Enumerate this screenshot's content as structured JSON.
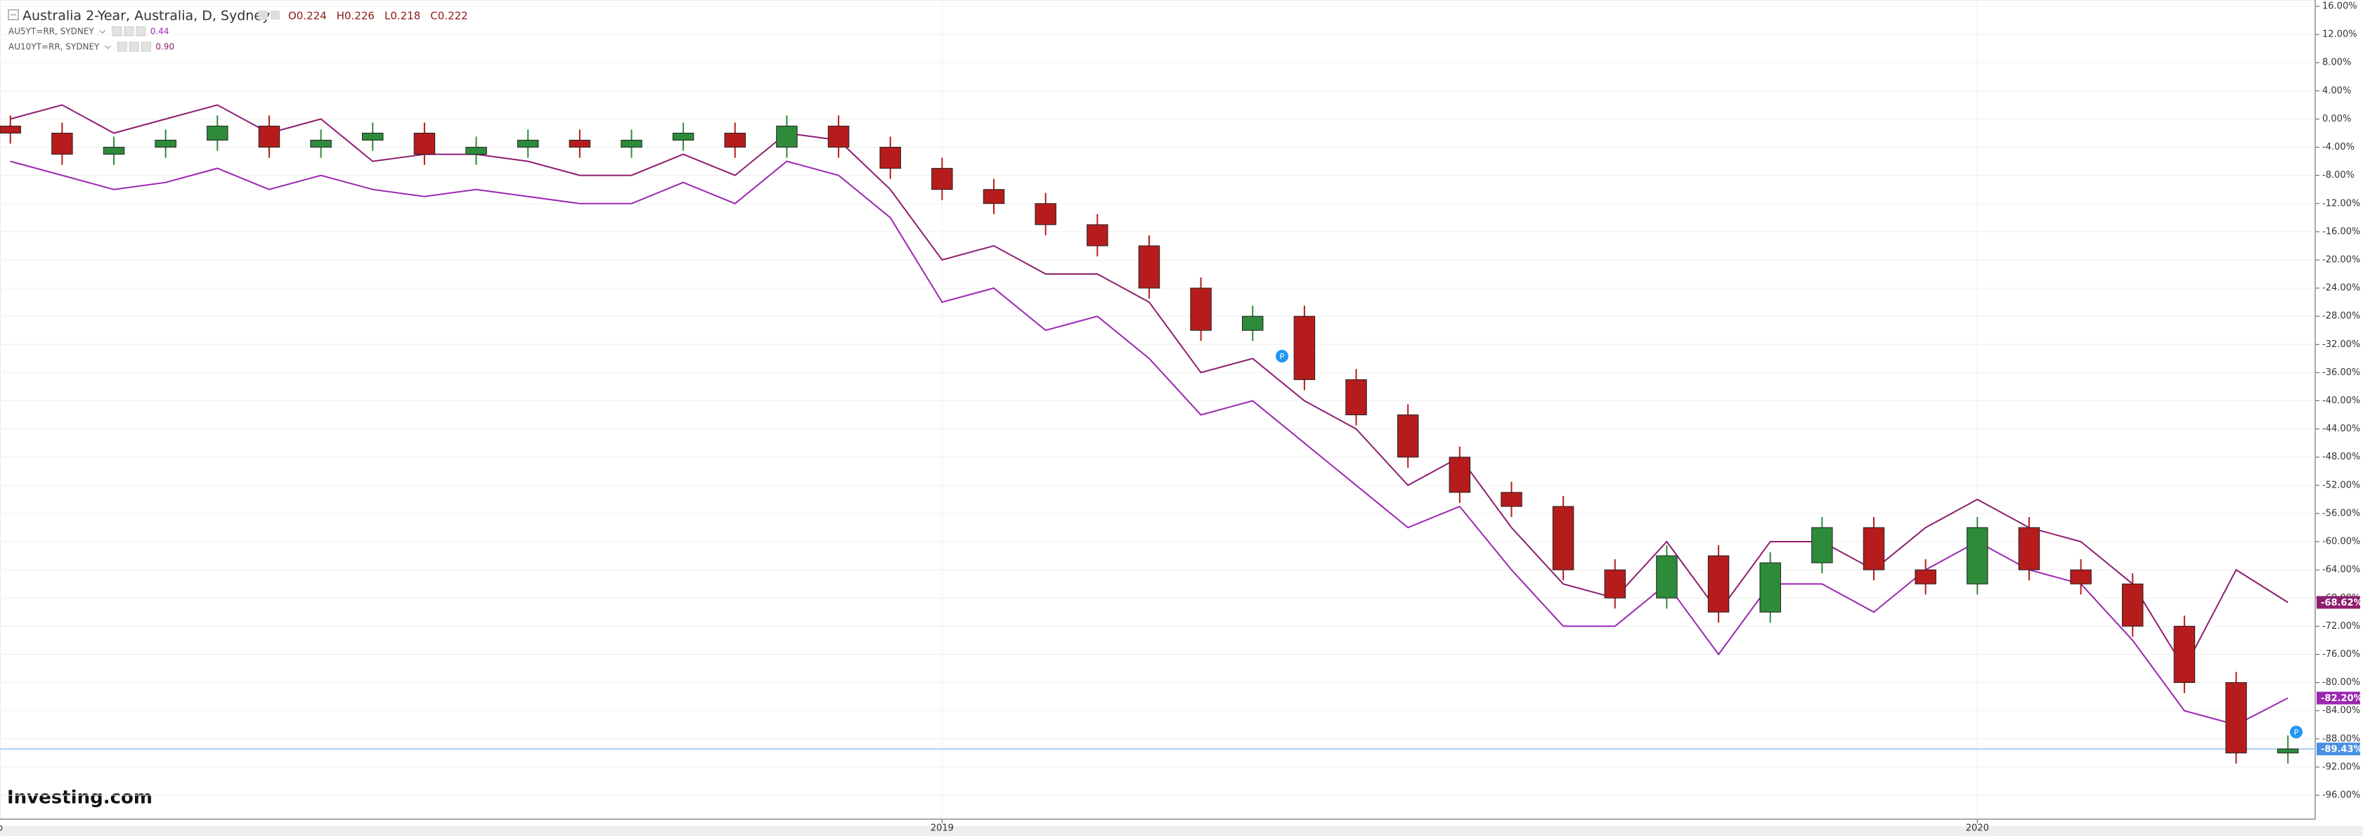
{
  "chart_data": {
    "type": "candlestick",
    "title": "Australia 2-Year, Australia, D, Sydney",
    "ohlc": [
      "O0.224",
      "H0.226",
      "L0.218",
      "C0.222"
    ],
    "logo": "Investing.com",
    "x": [
      2018.1,
      2018.15,
      2018.2,
      2018.25,
      2018.3,
      2018.35,
      2018.4,
      2018.45,
      2018.5,
      2018.55,
      2018.6,
      2018.65,
      2018.7,
      2018.75,
      2018.8,
      2018.85,
      2018.9,
      2018.95,
      2019.0,
      2019.05,
      2019.1,
      2019.15,
      2019.2,
      2019.25,
      2019.3,
      2019.35,
      2019.4,
      2019.45,
      2019.5,
      2019.55,
      2019.6,
      2019.65,
      2019.7,
      2019.75,
      2019.8,
      2019.85,
      2019.9,
      2019.95,
      2020.0,
      2020.05,
      2020.1,
      2020.15,
      2020.2,
      2020.25,
      2020.3
    ],
    "xlim": [
      2018.09,
      2020.325
    ],
    "xticks": [
      {
        "value": 2018.085,
        "label": "Feb"
      },
      {
        "value": 2019,
        "label": "2019"
      },
      {
        "value": 2020,
        "label": "2020"
      }
    ],
    "ylim": [
      -96,
      16
    ],
    "yticks": [
      {
        "value": 16,
        "label": "16.00%"
      },
      {
        "value": 12,
        "label": "12.00%"
      },
      {
        "value": 8,
        "label": "8.00%"
      },
      {
        "value": 4,
        "label": "4.00%"
      },
      {
        "value": 0,
        "label": "0.00%"
      },
      {
        "value": -4,
        "label": "-4.00%"
      },
      {
        "value": -8,
        "label": "-8.00%"
      },
      {
        "value": -12,
        "label": "-12.00%"
      },
      {
        "value": -16,
        "label": "-16.00%"
      },
      {
        "value": -20,
        "label": "-20.00%"
      },
      {
        "value": -24,
        "label": "-24.00%"
      },
      {
        "value": -28,
        "label": "-28.00%"
      },
      {
        "value": -32,
        "label": "-32.00%"
      },
      {
        "value": -36,
        "label": "-36.00%"
      },
      {
        "value": -40,
        "label": "-40.00%"
      },
      {
        "value": -44,
        "label": "-44.00%"
      },
      {
        "value": -48,
        "label": "-48.00%"
      },
      {
        "value": -52,
        "label": "-52.00%"
      },
      {
        "value": -56,
        "label": "-56.00%"
      },
      {
        "value": -60,
        "label": "-60.00%"
      },
      {
        "value": -64,
        "label": "-64.00%"
      },
      {
        "value": -68,
        "label": "-68.00%"
      },
      {
        "value": -72,
        "label": "-72.00%"
      },
      {
        "value": -76,
        "label": "-76.00%"
      },
      {
        "value": -80,
        "label": "-80.00%"
      },
      {
        "value": -84,
        "label": "-84.00%"
      },
      {
        "value": -88,
        "label": "-88.00%"
      },
      {
        "value": -92,
        "label": "-92.00%"
      },
      {
        "value": -96,
        "label": "-96.00%"
      }
    ],
    "grid": true,
    "series": [
      {
        "name": "Australia 2-Year",
        "color_up": "#2e8b3a",
        "color_down": "#b71c1c",
        "open": [
          -1,
          -2,
          -5,
          -4,
          -3,
          -1,
          -4,
          -3,
          -2,
          -5,
          -4,
          -3,
          -4,
          -3,
          -2,
          -4,
          -1,
          -4,
          -7,
          -10,
          -12,
          -15,
          -18,
          -24,
          -30,
          -28,
          -37,
          -42,
          -48,
          -53,
          -55,
          -64,
          -68,
          -62,
          -70,
          -63,
          -58,
          -64,
          -66,
          -58,
          -64,
          -66,
          -72,
          -80,
          -90
        ],
        "high": [
          0.5,
          -0.5,
          -2.5,
          -1.5,
          0.5,
          0.5,
          -1.5,
          -0.5,
          -0.5,
          -2.5,
          -1.5,
          -1.5,
          -1.5,
          -0.5,
          -0.5,
          0.5,
          0.5,
          -2.5,
          -5.5,
          -8.5,
          -10.5,
          -13.5,
          -16.5,
          -22.5,
          -26.5,
          -26.5,
          -35.5,
          -40.5,
          -46.5,
          -51.5,
          -53.5,
          -62.5,
          -60.5,
          -60.5,
          -61.5,
          -56.5,
          -56.5,
          -62.5,
          -56.5,
          -56.5,
          -62.5,
          -64.5,
          -70.5,
          -78.5,
          -87.5
        ],
        "low": [
          -3.5,
          -6.5,
          -6.5,
          -5.5,
          -4.5,
          -5.5,
          -5.5,
          -4.5,
          -6.5,
          -6.5,
          -5.5,
          -5.5,
          -5.5,
          -4.5,
          -5.5,
          -5.5,
          -5.5,
          -8.5,
          -11.5,
          -13.5,
          -16.5,
          -19.5,
          -25.5,
          -31.5,
          -31.5,
          -38.5,
          -43.5,
          -49.5,
          -54.5,
          -56.5,
          -65.5,
          -69.5,
          -69.5,
          -71.5,
          -71.5,
          -64.5,
          -65.5,
          -67.5,
          -67.5,
          -65.5,
          -67.5,
          -73.5,
          -81.5,
          -91.5,
          -91.5
        ],
        "close": [
          -2,
          -5,
          -4,
          -3,
          -1,
          -4,
          -3,
          -2,
          -5,
          -4,
          -3,
          -4,
          -3,
          -2,
          -4,
          -1,
          -4,
          -7,
          -10,
          -12,
          -15,
          -18,
          -24,
          -30,
          -28,
          -37,
          -42,
          -48,
          -53,
          -55,
          -64,
          -68,
          -62,
          -70,
          -63,
          -58,
          -64,
          -66,
          -58,
          -64,
          -66,
          -72,
          -80,
          -90,
          -89.43
        ]
      },
      {
        "name": "AU5YT=RR, SYDNEY",
        "legend_value": "0.44",
        "color": "#9c27b0",
        "values": [
          -6,
          -8,
          -10,
          -9,
          -7,
          -10,
          -8,
          -10,
          -11,
          -10,
          -11,
          -12,
          -12,
          -9,
          -12,
          -6,
          -8,
          -14,
          -26,
          -24,
          -30,
          -28,
          -34,
          -42,
          -40,
          -46,
          -52,
          -58,
          -55,
          -64,
          -72,
          -72,
          -66,
          -76,
          -66,
          -66,
          -70,
          -64,
          -60,
          -64,
          -66,
          -74,
          -84,
          -86,
          -82.2
        ]
      },
      {
        "name": "AU10YT=RR, SYDNEY",
        "legend_value": "0.90",
        "color": "#8e1e6e",
        "values": [
          0,
          2,
          -2,
          0,
          2,
          -2,
          0,
          -6,
          -5,
          -5,
          -6,
          -8,
          -8,
          -5,
          -8,
          -2,
          -3,
          -10,
          -20,
          -18,
          -22,
          -22,
          -26,
          -36,
          -34,
          -40,
          -44,
          -52,
          -48,
          -58,
          -66,
          -68,
          -60,
          -70,
          -60,
          -60,
          -64,
          -58,
          -54,
          -58,
          -60,
          -66,
          -78,
          -64,
          -68.62
        ]
      }
    ],
    "price_labels": [
      {
        "value": -68.62,
        "label": "-68.62%",
        "color": "#8e1e6e"
      },
      {
        "value": -82.2,
        "label": "-82.20%",
        "color": "#9c27b0"
      },
      {
        "value": -89.43,
        "label": "-89.43%",
        "color": "#4a90e2"
      }
    ]
  }
}
